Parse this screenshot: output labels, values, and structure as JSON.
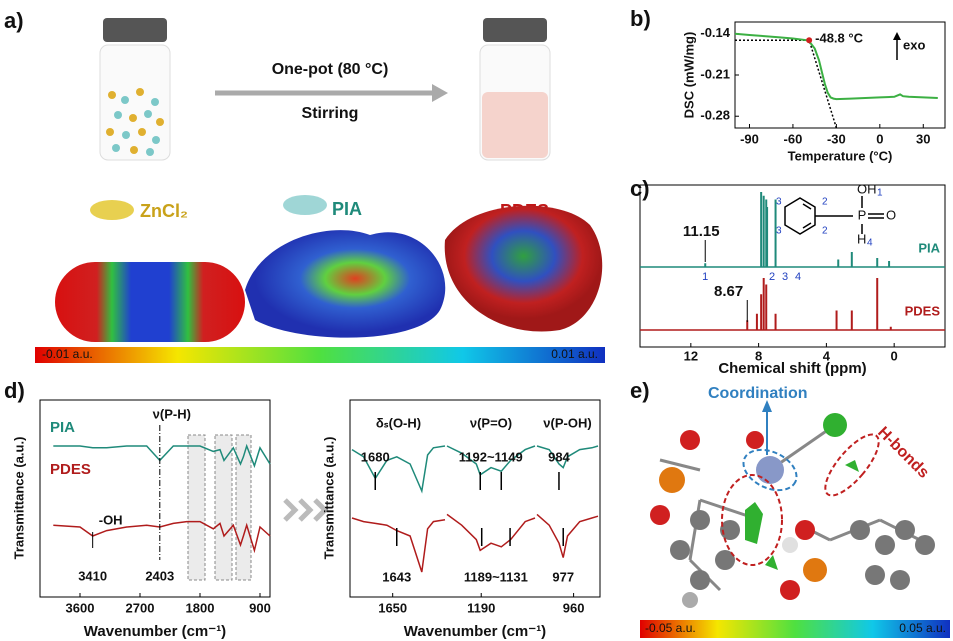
{
  "figure": {
    "panel_labels": [
      "a)",
      "b)",
      "c)",
      "d)",
      "e)"
    ],
    "scheme": {
      "step": "One-pot (80 °C)",
      "condition": "Stirring",
      "components": [
        "ZnCl₂",
        "PIA",
        "PDES"
      ],
      "colorbar": [
        "-0.01 a.u.",
        "0.01 a.u."
      ]
    },
    "interaction": {
      "annotations": [
        "Coordination",
        "H-bonds"
      ],
      "colorbar": [
        "-0.05 a.u.",
        "0.05 a.u."
      ]
    }
  },
  "chart_data": [
    {
      "type": "line",
      "ylabel": "DSC (mW/mg)",
      "xlabel": "Temperature (°C)",
      "color": "#3cb043",
      "x": [
        -100,
        -90,
        -80,
        -70,
        -60,
        -50,
        -48.8,
        -45,
        -42,
        -40,
        -38,
        -36,
        -34,
        -32,
        -30,
        -20,
        -10,
        0,
        10,
        14,
        16,
        20,
        30,
        40
      ],
      "values": [
        -0.14,
        -0.142,
        -0.144,
        -0.146,
        -0.148,
        -0.151,
        -0.153,
        -0.165,
        -0.185,
        -0.205,
        -0.225,
        -0.24,
        -0.248,
        -0.25,
        -0.251,
        -0.25,
        -0.249,
        -0.248,
        -0.247,
        -0.243,
        -0.246,
        -0.247,
        -0.248,
        -0.249
      ],
      "xlim": [
        -100,
        45
      ],
      "xticks": [
        -90,
        -60,
        -30,
        0,
        30
      ],
      "ylim": [
        -0.3,
        -0.12
      ],
      "yticks": [
        -0.14,
        -0.21,
        -0.28
      ],
      "onset": {
        "x": -48.8,
        "y": -0.151,
        "label": "-48.8 °C"
      },
      "tangent": {
        "x": [
          -100,
          -48.8,
          -30
        ],
        "values": [
          -0.151,
          -0.151,
          -0.3
        ]
      },
      "annotation": "exo"
    },
    {
      "type": "nmr",
      "xlabel": "Chemical shift (ppm)",
      "xlim": [
        15,
        -3
      ],
      "xticks": [
        12,
        8,
        4,
        0
      ],
      "series": [
        {
          "name": "PIA",
          "color": "#1f8a7a",
          "ppm": [
            11.15,
            7.85,
            7.7,
            7.55,
            7.5,
            7.0,
            3.3,
            2.5,
            1.0,
            0.3
          ],
          "values": [
            0.05,
            1,
            0.95,
            0.9,
            0.8,
            0.9,
            0.1,
            0.2,
            0.12,
            0.08
          ]
        },
        {
          "name": "PDES",
          "color": "#b01c1c",
          "ppm": [
            8.67,
            8.1,
            7.85,
            7.7,
            7.55,
            7.0,
            3.4,
            2.5,
            1.0,
            0.2
          ],
          "values": [
            0.15,
            0.25,
            0.55,
            0.8,
            0.7,
            0.25,
            0.3,
            0.3,
            0.8,
            0.05
          ]
        }
      ],
      "annotations": [
        {
          "x": 11.15,
          "label": "11.15"
        },
        {
          "x": 8.67,
          "label": "8.67"
        }
      ],
      "peak_numbers": [
        "1",
        "2",
        "3",
        "4"
      ],
      "structure": {
        "oh": "OH",
        "p": "P",
        "o": "O",
        "h": "H",
        "numbers": [
          "1",
          "4",
          "3",
          "2",
          "3",
          "2"
        ]
      }
    },
    {
      "type": "line",
      "ylabel": "Transmittance (a.u.)",
      "xlabel": "Wavenumber (cm⁻¹)",
      "xlim": [
        4200,
        750
      ],
      "xticks": [
        3600,
        2700,
        1800,
        900
      ],
      "ylim": [
        0,
        1
      ],
      "x": [
        4000,
        3600,
        3410,
        3200,
        2900,
        2600,
        2403,
        2200,
        2000,
        1800,
        1600,
        1500,
        1440,
        1300,
        1192,
        1149,
        1100,
        984,
        900,
        750
      ],
      "series": [
        {
          "name": "PIA",
          "color": "#1f8a7a",
          "values": [
            0.8,
            0.8,
            0.79,
            0.79,
            0.8,
            0.8,
            0.72,
            0.8,
            0.8,
            0.8,
            0.77,
            0.78,
            0.72,
            0.79,
            0.7,
            0.74,
            0.8,
            0.69,
            0.79,
            0.7
          ]
        },
        {
          "name": "PDES",
          "color": "#b01c1c",
          "values": [
            0.36,
            0.35,
            0.3,
            0.33,
            0.35,
            0.36,
            0.35,
            0.37,
            0.38,
            0.38,
            0.34,
            0.37,
            0.3,
            0.36,
            0.25,
            0.3,
            0.36,
            0.22,
            0.35,
            0.3
          ]
        }
      ],
      "bands": [
        {
          "value": 3410,
          "assignment": "-OH"
        },
        {
          "value": 2403,
          "assignment": "ν(P-H)"
        }
      ]
    },
    {
      "type": "broken-line",
      "ylabel": "Transmittance (a.u.)",
      "xlabel": "Wavenumber (cm⁻¹)",
      "ylim": [
        0,
        1
      ],
      "colors": [
        "#1f8a7a",
        "#b01c1c"
      ],
      "segments": [
        {
          "title": "δₛ(O-H)",
          "xlim": [
            1720,
            1560
          ],
          "xticks": [
            1650
          ],
          "x": [
            1720,
            1700,
            1680,
            1660,
            1643,
            1620,
            1600,
            1590,
            1580,
            1560
          ],
          "series": [
            [
              0.78,
              0.74,
              0.62,
              0.72,
              0.74,
              0.7,
              0.55,
              0.75,
              0.79,
              0.8
            ],
            [
              0.4,
              0.38,
              0.37,
              0.36,
              0.33,
              0.3,
              0.1,
              0.34,
              0.38,
              0.39
            ]
          ],
          "pia_bands": [
            1680
          ],
          "pdes_bands": [
            1643
          ]
        },
        {
          "title": "ν(P=O)",
          "xlim": [
            1260,
            1080
          ],
          "xticks": [
            1190
          ],
          "x": [
            1260,
            1230,
            1200,
            1192,
            1170,
            1149,
            1130,
            1100,
            1080
          ],
          "series": [
            [
              0.8,
              0.76,
              0.7,
              0.64,
              0.68,
              0.66,
              0.72,
              0.78,
              0.8
            ],
            [
              0.42,
              0.36,
              0.28,
              0.22,
              0.26,
              0.24,
              0.28,
              0.38,
              0.4
            ]
          ],
          "pia_bands": [
            {
              "value": [
                1192,
                1149
              ],
              "label": "1192~1149"
            }
          ],
          "pdes_bands": [
            {
              "value": [
                1189,
                1131
              ],
              "label": "1189~1131"
            }
          ]
        },
        {
          "title": "ν(P-OH)",
          "xlim": [
            1020,
            920
          ],
          "xticks": [
            960
          ],
          "x": [
            1020,
            1000,
            984,
            977,
            970,
            950,
            930,
            920
          ],
          "series": [
            [
              0.8,
              0.78,
              0.7,
              0.68,
              0.74,
              0.78,
              0.79,
              0.8
            ],
            [
              0.42,
              0.36,
              0.26,
              0.18,
              0.3,
              0.38,
              0.4,
              0.41
            ]
          ],
          "pia_bands": [
            984
          ],
          "pdes_bands": [
            977
          ]
        }
      ]
    }
  ]
}
